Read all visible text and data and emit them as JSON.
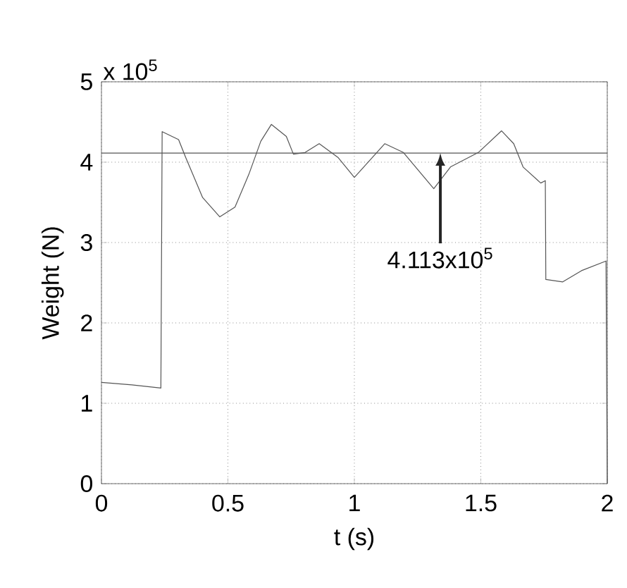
{
  "chart_data": {
    "type": "line",
    "xlabel": "t (s)",
    "ylabel": "Weight (N)",
    "x": [
      0,
      0.12,
      0.235,
      0.24,
      0.305,
      0.333,
      0.4,
      0.468,
      0.528,
      0.583,
      0.63,
      0.672,
      0.731,
      0.759,
      0.805,
      0.861,
      0.935,
      1.0,
      1.12,
      1.194,
      1.314,
      1.38,
      1.49,
      1.582,
      1.63,
      1.667,
      1.737,
      1.755,
      1.757,
      1.824,
      1.898,
      1.995,
      2.0
    ],
    "series": [
      {
        "color": "#555555",
        "values": [
          1.26,
          1.23,
          1.19,
          4.38,
          4.28,
          4.06,
          3.56,
          3.32,
          3.44,
          3.85,
          4.26,
          4.47,
          4.32,
          4.1,
          4.12,
          4.23,
          4.06,
          3.81,
          4.23,
          4.12,
          3.67,
          3.94,
          4.12,
          4.39,
          4.23,
          3.94,
          3.74,
          3.77,
          2.54,
          2.51,
          2.65,
          2.77,
          0
        ]
      }
    ],
    "xlim": [
      0,
      2
    ],
    "ylim": [
      0,
      5
    ],
    "xticks": [
      0,
      0.5,
      1,
      1.5,
      2
    ],
    "yticks": [
      0,
      1,
      2,
      3,
      4,
      5
    ],
    "grid": true,
    "marker": "none",
    "line_style": "solid",
    "ref_lines": [
      {
        "axis": "y",
        "value": 4.113,
        "color": "#555555"
      }
    ],
    "annotations": [
      "x 10$^{5}$",
      {
        "text": "4.113x10$^{5}$",
        "x": 1.34,
        "y": 4.113
      }
    ]
  }
}
